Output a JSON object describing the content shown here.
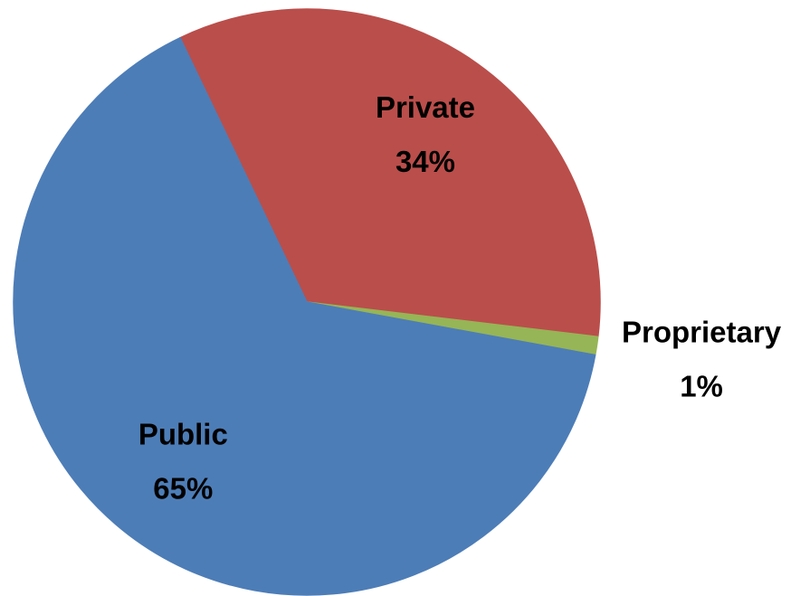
{
  "chart_data": {
    "type": "pie",
    "categories": [
      "Private",
      "Proprietary",
      "Public"
    ],
    "values": [
      34,
      1,
      65
    ],
    "value_labels": [
      "34%",
      "1%",
      "65%"
    ],
    "colors": [
      "#c0504d",
      "#9bbb59",
      "#4f81bd"
    ]
  }
}
